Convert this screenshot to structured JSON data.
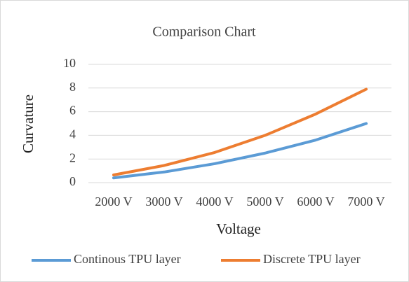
{
  "chart_data": {
    "type": "line",
    "title": "Comparison Chart",
    "x_label": "Voltage",
    "y_label": "Curvature",
    "categories": [
      "2000 V",
      "3000 V",
      "4000 V",
      "5000 V",
      "6000 V",
      "7000 V"
    ],
    "series": [
      {
        "name": "Continous TPU layer",
        "color": "#5b9bd5",
        "values": [
          0.4,
          0.9,
          1.6,
          2.5,
          3.6,
          5.0
        ]
      },
      {
        "name": "Discrete TPU layer",
        "color": "#ed7d31",
        "values": [
          0.65,
          1.45,
          2.55,
          4.0,
          5.8,
          7.9
        ]
      }
    ],
    "ylim": [
      0,
      10
    ],
    "yticks": [
      0,
      2,
      4,
      6,
      8,
      10
    ],
    "grid": true,
    "legend": "bottom"
  }
}
